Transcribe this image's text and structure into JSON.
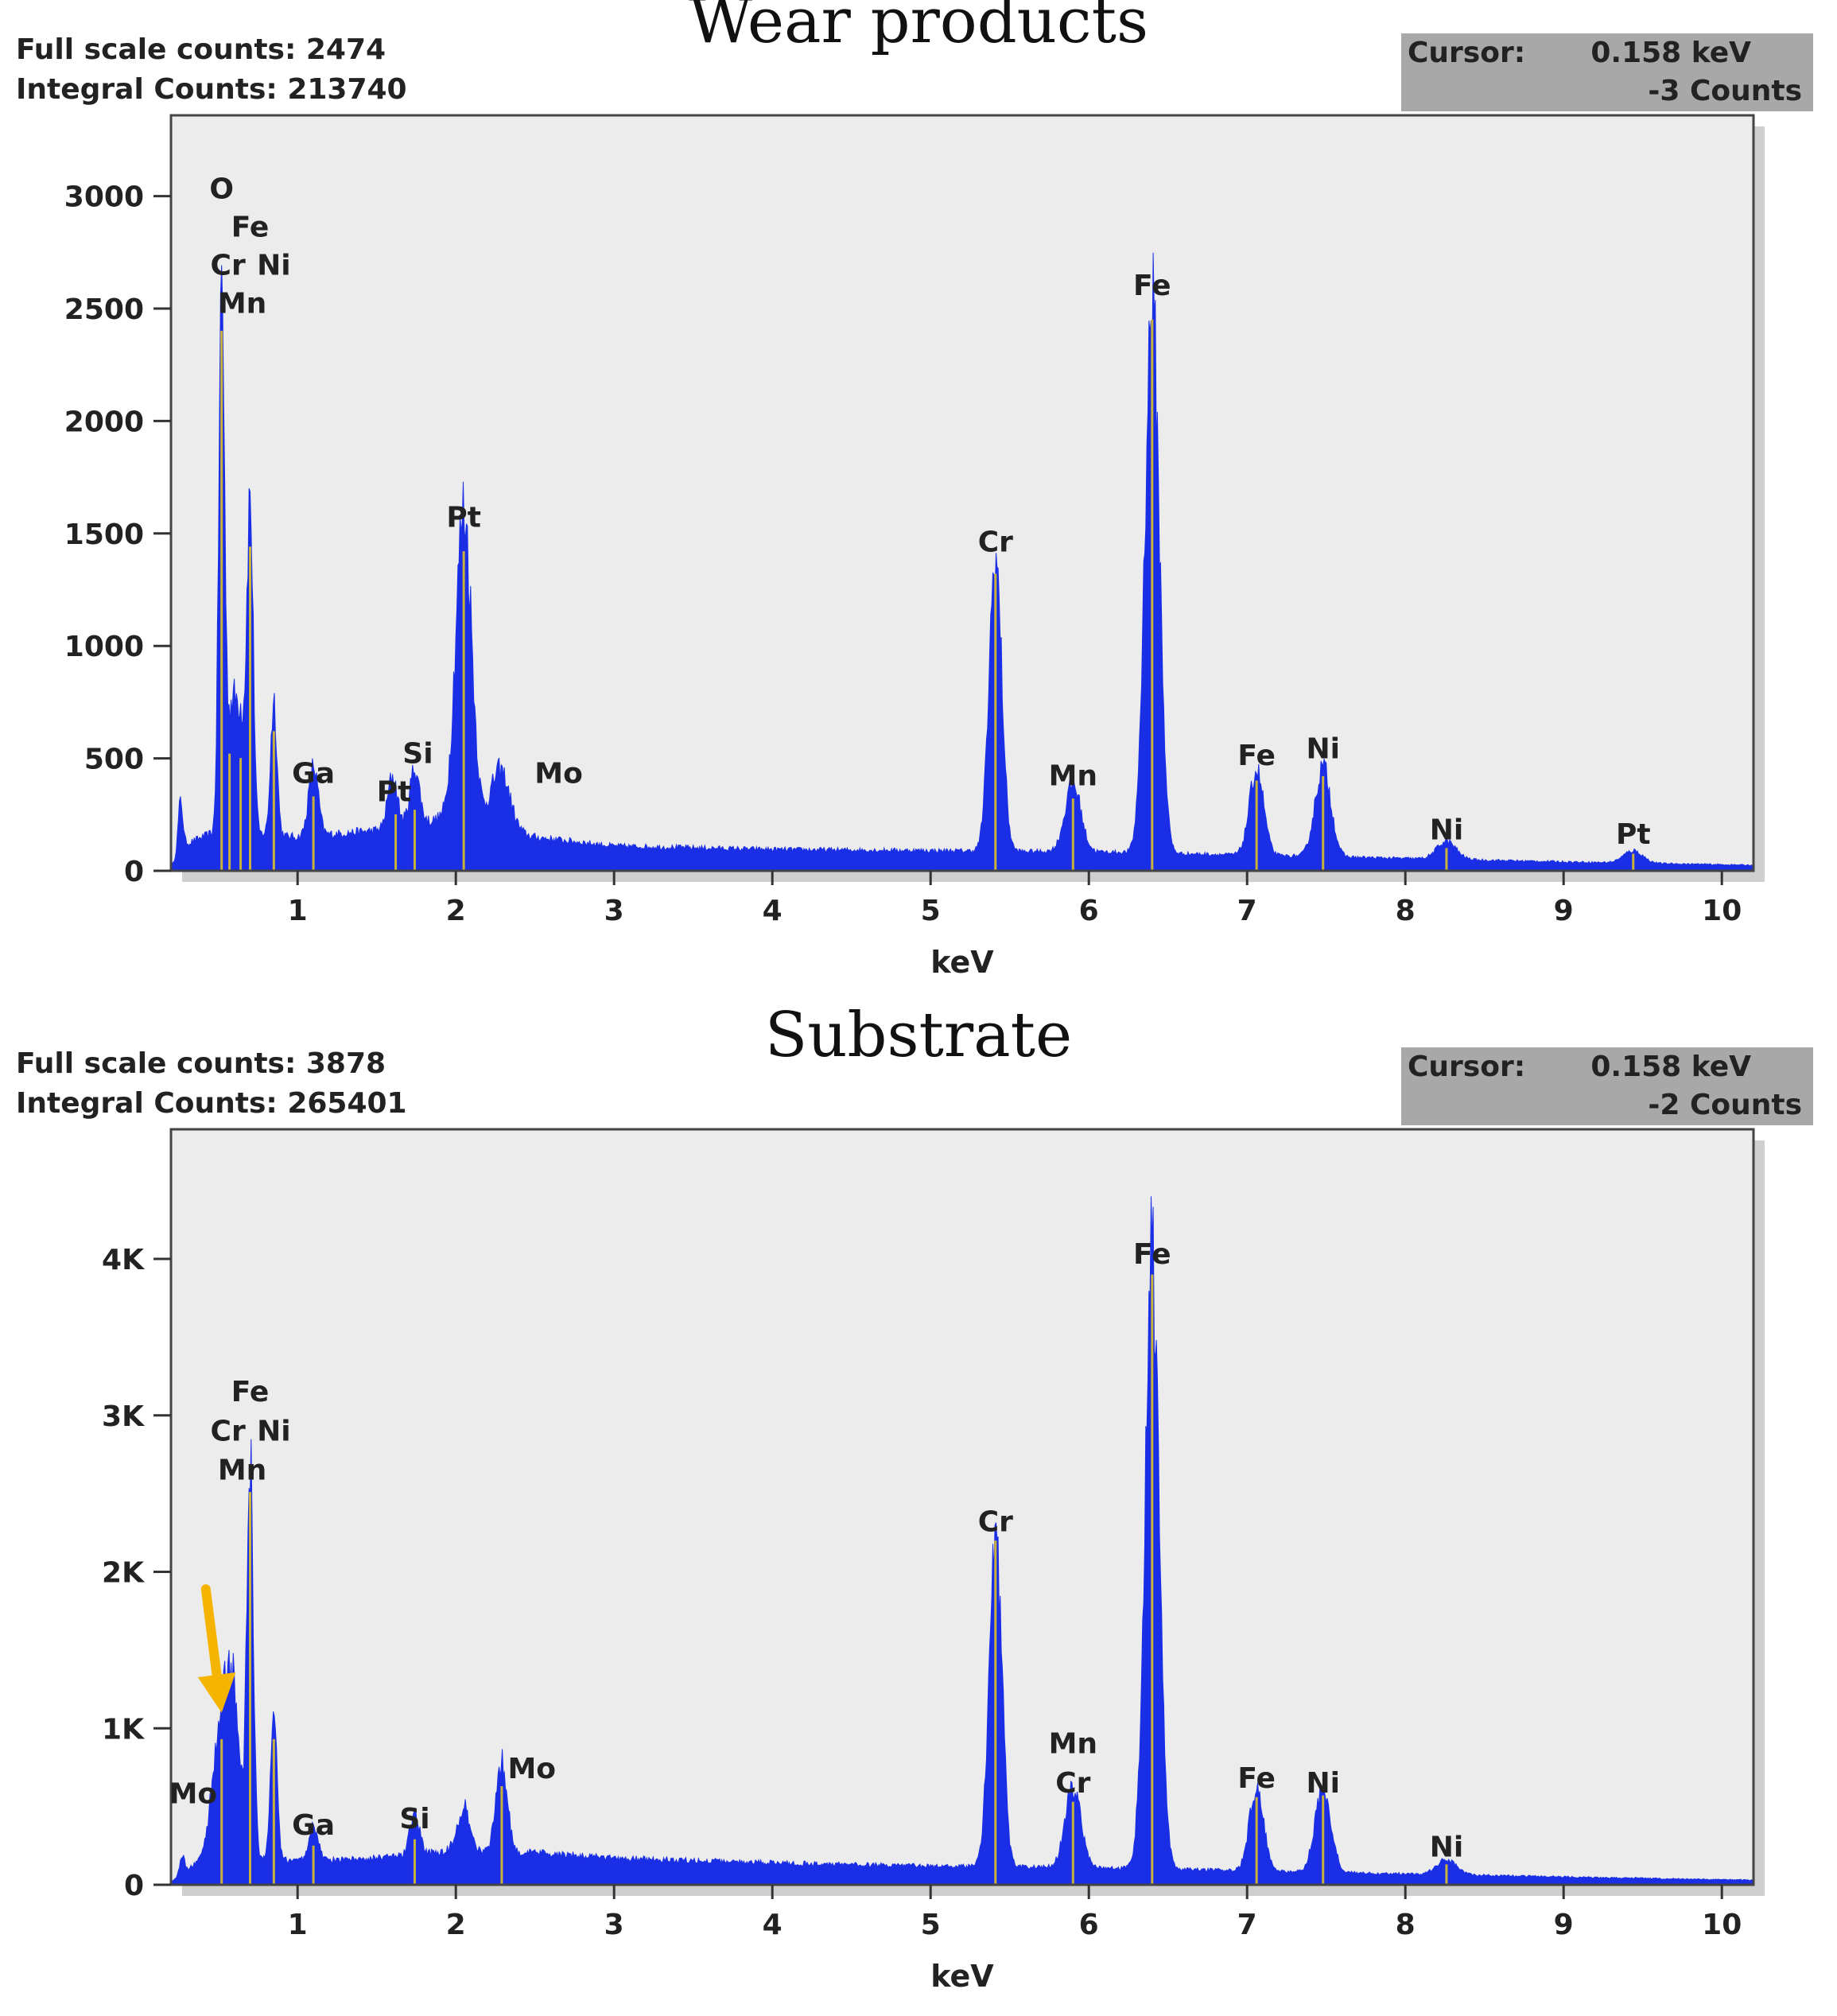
{
  "panels": [
    {
      "stats": {
        "full_scale": "Full scale counts: 2474",
        "integral": "Integral Counts: 213740"
      },
      "title": "Wear products",
      "cursor": {
        "label": "Cursor:",
        "kev": "0.158 keV",
        "counts": "-3 Counts"
      }
    },
    {
      "stats": {
        "full_scale": "Full scale counts: 3878",
        "integral": "Integral Counts: 265401"
      },
      "title": "Substrate",
      "cursor": {
        "label": "Cursor:",
        "kev": "0.158 keV",
        "counts": "-2 Counts"
      }
    }
  ],
  "colors": {
    "spectrum": "#1a2ee6",
    "marker": "#c9b23a",
    "plot_bg": "#ececec",
    "frame": "#444444",
    "arrow": "#f5b400"
  },
  "chart_data": [
    {
      "type": "area",
      "title": "Wear products",
      "xlabel": "keV",
      "ylabel": "",
      "xlim": [
        0.2,
        10.2
      ],
      "ylim": [
        0,
        3200
      ],
      "xticks": [
        1,
        2,
        3,
        4,
        5,
        6,
        7,
        8,
        9,
        10
      ],
      "yticks": [
        0,
        500,
        1000,
        1500,
        2000,
        2500,
        3000
      ],
      "ytick_labels": [
        "0",
        "500",
        "1000",
        "1500",
        "2000",
        "2500",
        "3000"
      ],
      "background_level": [
        [
          0.2,
          20
        ],
        [
          0.3,
          120
        ],
        [
          0.5,
          180
        ],
        [
          1.0,
          150
        ],
        [
          1.5,
          180
        ],
        [
          1.9,
          230
        ],
        [
          2.5,
          150
        ],
        [
          3.0,
          110
        ],
        [
          4.0,
          95
        ],
        [
          5.0,
          90
        ],
        [
          6.0,
          85
        ],
        [
          7.0,
          70
        ],
        [
          8.0,
          55
        ],
        [
          9.0,
          40
        ],
        [
          10.2,
          25
        ]
      ],
      "peaks": [
        {
          "x": 0.26,
          "y": 230,
          "w": 0.015
        },
        {
          "x": 0.52,
          "y": 2380,
          "w": 0.018
        },
        {
          "x": 0.58,
          "y": 500,
          "w": 0.03
        },
        {
          "x": 0.64,
          "y": 480,
          "w": 0.03
        },
        {
          "x": 0.7,
          "y": 1420,
          "w": 0.02
        },
        {
          "x": 0.85,
          "y": 600,
          "w": 0.02
        },
        {
          "x": 1.1,
          "y": 310,
          "w": 0.03
        },
        {
          "x": 1.6,
          "y": 230,
          "w": 0.03
        },
        {
          "x": 1.74,
          "y": 250,
          "w": 0.03
        },
        {
          "x": 2.05,
          "y": 1400,
          "w": 0.05
        },
        {
          "x": 2.28,
          "y": 270,
          "w": 0.06
        },
        {
          "x": 5.41,
          "y": 1300,
          "w": 0.04
        },
        {
          "x": 5.9,
          "y": 300,
          "w": 0.05
        },
        {
          "x": 6.4,
          "y": 2430,
          "w": 0.045
        },
        {
          "x": 7.06,
          "y": 380,
          "w": 0.045
        },
        {
          "x": 7.48,
          "y": 400,
          "w": 0.05
        },
        {
          "x": 8.26,
          "y": 80,
          "w": 0.06
        },
        {
          "x": 9.44,
          "y": 55,
          "w": 0.06
        }
      ],
      "markers": [
        {
          "x": 0.52,
          "y": 2380
        },
        {
          "x": 0.57,
          "y": 500
        },
        {
          "x": 0.64,
          "y": 480
        },
        {
          "x": 0.7,
          "y": 1420
        },
        {
          "x": 0.85,
          "y": 600
        },
        {
          "x": 1.1,
          "y": 310
        },
        {
          "x": 1.62,
          "y": 230
        },
        {
          "x": 1.74,
          "y": 250
        },
        {
          "x": 2.05,
          "y": 1400
        },
        {
          "x": 5.41,
          "y": 1300
        },
        {
          "x": 5.9,
          "y": 300
        },
        {
          "x": 6.4,
          "y": 2430
        },
        {
          "x": 7.06,
          "y": 380
        },
        {
          "x": 7.48,
          "y": 400
        },
        {
          "x": 8.26,
          "y": 80
        },
        {
          "x": 9.44,
          "y": 55
        }
      ],
      "labels": [
        {
          "text": "O",
          "x": 0.52,
          "y": 2990
        },
        {
          "text": "Fe",
          "x": 0.7,
          "y": 2820
        },
        {
          "text": "Cr",
          "x": 0.56,
          "y": 2650
        },
        {
          "text": "Ni",
          "x": 0.85,
          "y": 2650
        },
        {
          "text": "Mn",
          "x": 0.65,
          "y": 2480
        },
        {
          "text": "Ga",
          "x": 1.1,
          "y": 390
        },
        {
          "text": "Pt",
          "x": 1.61,
          "y": 310
        },
        {
          "text": "Si",
          "x": 1.76,
          "y": 480
        },
        {
          "text": "Pt",
          "x": 2.05,
          "y": 1530
        },
        {
          "text": "Mo",
          "x": 2.65,
          "y": 390
        },
        {
          "text": "Cr",
          "x": 5.41,
          "y": 1420
        },
        {
          "text": "Mn",
          "x": 5.9,
          "y": 380
        },
        {
          "text": "Fe",
          "x": 6.4,
          "y": 2560
        },
        {
          "text": "Fe",
          "x": 7.06,
          "y": 470
        },
        {
          "text": "Ni",
          "x": 7.48,
          "y": 500
        },
        {
          "text": "Ni",
          "x": 8.26,
          "y": 140
        },
        {
          "text": "Pt",
          "x": 9.44,
          "y": 120
        }
      ]
    },
    {
      "type": "area",
      "title": "Substrate",
      "xlabel": "keV",
      "ylabel": "",
      "xlim": [
        0.2,
        10.2
      ],
      "ylim": [
        0,
        4600
      ],
      "xticks": [
        1,
        2,
        3,
        4,
        5,
        6,
        7,
        8,
        9,
        10
      ],
      "yticks": [
        0,
        1000,
        2000,
        3000,
        4000
      ],
      "ytick_labels": [
        "0",
        "1K",
        "2K",
        "3K",
        "4K"
      ],
      "background_level": [
        [
          0.2,
          20
        ],
        [
          0.3,
          90
        ],
        [
          0.45,
          220
        ],
        [
          1.0,
          150
        ],
        [
          1.5,
          170
        ],
        [
          2.0,
          220
        ],
        [
          2.6,
          200
        ],
        [
          3.0,
          170
        ],
        [
          4.0,
          140
        ],
        [
          5.0,
          120
        ],
        [
          6.0,
          110
        ],
        [
          7.0,
          90
        ],
        [
          8.0,
          70
        ],
        [
          9.0,
          50
        ],
        [
          10.2,
          30
        ]
      ],
      "peaks": [
        {
          "x": 0.27,
          "y": 120,
          "w": 0.015
        },
        {
          "x": 0.52,
          "y": 900,
          "w": 0.05
        },
        {
          "x": 0.6,
          "y": 850,
          "w": 0.04
        },
        {
          "x": 0.7,
          "y": 2480,
          "w": 0.02
        },
        {
          "x": 0.85,
          "y": 900,
          "w": 0.02
        },
        {
          "x": 1.1,
          "y": 220,
          "w": 0.03
        },
        {
          "x": 1.74,
          "y": 260,
          "w": 0.03
        },
        {
          "x": 2.05,
          "y": 280,
          "w": 0.04
        },
        {
          "x": 2.29,
          "y": 600,
          "w": 0.035
        },
        {
          "x": 5.41,
          "y": 2170,
          "w": 0.04
        },
        {
          "x": 5.9,
          "y": 500,
          "w": 0.05
        },
        {
          "x": 6.4,
          "y": 3870,
          "w": 0.045
        },
        {
          "x": 7.06,
          "y": 530,
          "w": 0.045
        },
        {
          "x": 7.48,
          "y": 540,
          "w": 0.05
        },
        {
          "x": 8.26,
          "y": 100,
          "w": 0.06
        }
      ],
      "markers": [
        {
          "x": 0.52,
          "y": 900
        },
        {
          "x": 0.7,
          "y": 2480
        },
        {
          "x": 0.85,
          "y": 900
        },
        {
          "x": 1.1,
          "y": 220
        },
        {
          "x": 1.74,
          "y": 260
        },
        {
          "x": 2.29,
          "y": 600
        },
        {
          "x": 5.41,
          "y": 2170
        },
        {
          "x": 5.9,
          "y": 500
        },
        {
          "x": 6.4,
          "y": 3870
        },
        {
          "x": 7.06,
          "y": 530
        },
        {
          "x": 7.48,
          "y": 540
        },
        {
          "x": 8.26,
          "y": 100
        }
      ],
      "labels": [
        {
          "text": "Fe",
          "x": 0.7,
          "y": 3090
        },
        {
          "text": "Cr",
          "x": 0.56,
          "y": 2840
        },
        {
          "text": "Ni",
          "x": 0.85,
          "y": 2840
        },
        {
          "text": "Mn",
          "x": 0.65,
          "y": 2590
        },
        {
          "text": "Mo",
          "x": 0.34,
          "y": 520
        },
        {
          "text": "Ga",
          "x": 1.1,
          "y": 320
        },
        {
          "text": "Si",
          "x": 1.74,
          "y": 360
        },
        {
          "text": "Mo",
          "x": 2.48,
          "y": 680
        },
        {
          "text": "Cr",
          "x": 5.41,
          "y": 2260
        },
        {
          "text": "Mn",
          "x": 5.9,
          "y": 840
        },
        {
          "text": "Cr",
          "x": 5.9,
          "y": 590
        },
        {
          "text": "Fe",
          "x": 6.4,
          "y": 3970
        },
        {
          "text": "Fe",
          "x": 7.06,
          "y": 620
        },
        {
          "text": "Ni",
          "x": 7.48,
          "y": 590
        },
        {
          "text": "Ni",
          "x": 8.26,
          "y": 180
        }
      ],
      "arrow": {
        "from": [
          0.42,
          1890
        ],
        "to": [
          0.52,
          1100
        ]
      }
    }
  ]
}
